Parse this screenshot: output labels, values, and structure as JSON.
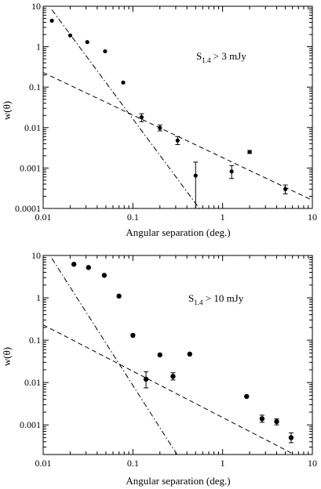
{
  "chart_data": [
    {
      "type": "scatter",
      "panel": "top",
      "xscale": "log",
      "yscale": "log",
      "xlim": [
        0.01,
        10
      ],
      "ylim": [
        0.0001,
        10
      ],
      "xlabel": "Angular separation (deg.)",
      "ylabel": "w(θ)",
      "annotation": {
        "main": "S",
        "sub": "1.4",
        "rest": " > 3 mJy"
      },
      "x_ticks": [
        "0.01",
        "0.1",
        "1",
        "10"
      ],
      "y_ticks": [
        "0.0001",
        "0.001",
        "0.01",
        "0.1",
        "1",
        "10"
      ],
      "points": [
        {
          "x": 0.0125,
          "y": 4.4
        },
        {
          "x": 0.02,
          "y": 1.9
        },
        {
          "x": 0.031,
          "y": 1.3
        },
        {
          "x": 0.049,
          "y": 0.77
        },
        {
          "x": 0.078,
          "y": 0.13
        },
        {
          "x": 0.125,
          "y": 0.018,
          "ylo": 0.014,
          "yhi": 0.022
        },
        {
          "x": 0.2,
          "y": 0.0098,
          "ylo": 0.0083,
          "yhi": 0.0115
        },
        {
          "x": 0.315,
          "y": 0.0048,
          "ylo": 0.0038,
          "yhi": 0.006
        },
        {
          "x": 0.5,
          "y": 0.00065,
          "ylo": 0.0001,
          "yhi": 0.0014
        },
        {
          "x": 1.26,
          "y": 0.00082,
          "ylo": 0.00055,
          "yhi": 0.00115
        },
        {
          "x": 2.0,
          "y": 0.0025,
          "ylo": 0.0023,
          "yhi": 0.0027
        },
        {
          "x": 5.0,
          "y": 0.0003,
          "ylo": 0.00023,
          "yhi": 0.00038
        }
      ],
      "lines": [
        {
          "style": "dashed",
          "x": [
            0.01,
            10
          ],
          "y": [
            0.23,
            0.00016
          ]
        },
        {
          "style": "dashdot",
          "x": [
            0.0125,
            0.55
          ],
          "y": [
            8.2,
            0.0001
          ]
        }
      ]
    },
    {
      "type": "scatter",
      "panel": "bottom",
      "xscale": "log",
      "yscale": "log",
      "xlim": [
        0.01,
        10
      ],
      "ylim": [
        0.0002,
        10
      ],
      "xlabel": "Angular separation (deg.)",
      "ylabel": "w(θ)",
      "annotation": {
        "main": "S",
        "sub": "1.4",
        "rest": " > 10 mJy"
      },
      "x_ticks": [
        "0.01",
        "0.1",
        "1",
        "10"
      ],
      "y_ticks": [
        "0.001",
        "0.01",
        "0.1",
        "1",
        "10"
      ],
      "points": [
        {
          "x": 0.022,
          "y": 6.2
        },
        {
          "x": 0.032,
          "y": 5.2
        },
        {
          "x": 0.048,
          "y": 3.4
        },
        {
          "x": 0.07,
          "y": 1.1
        },
        {
          "x": 0.1,
          "y": 0.13
        },
        {
          "x": 0.14,
          "y": 0.012,
          "ylo": 0.0075,
          "yhi": 0.018
        },
        {
          "x": 0.2,
          "y": 0.045
        },
        {
          "x": 0.28,
          "y": 0.014,
          "ylo": 0.0115,
          "yhi": 0.017
        },
        {
          "x": 0.43,
          "y": 0.047
        },
        {
          "x": 1.85,
          "y": 0.0047
        },
        {
          "x": 2.75,
          "y": 0.0014,
          "ylo": 0.00115,
          "yhi": 0.0017
        },
        {
          "x": 4.0,
          "y": 0.0012,
          "ylo": 0.001,
          "yhi": 0.0014
        },
        {
          "x": 5.8,
          "y": 0.0005,
          "ylo": 0.00038,
          "yhi": 0.00065
        }
      ],
      "lines": [
        {
          "style": "dashed",
          "x": [
            0.01,
            6.3
          ],
          "y": [
            0.23,
            0.0002
          ]
        },
        {
          "style": "dashdot",
          "x": [
            0.0125,
            0.31
          ],
          "y": [
            8.5,
            0.0002
          ]
        }
      ]
    }
  ]
}
